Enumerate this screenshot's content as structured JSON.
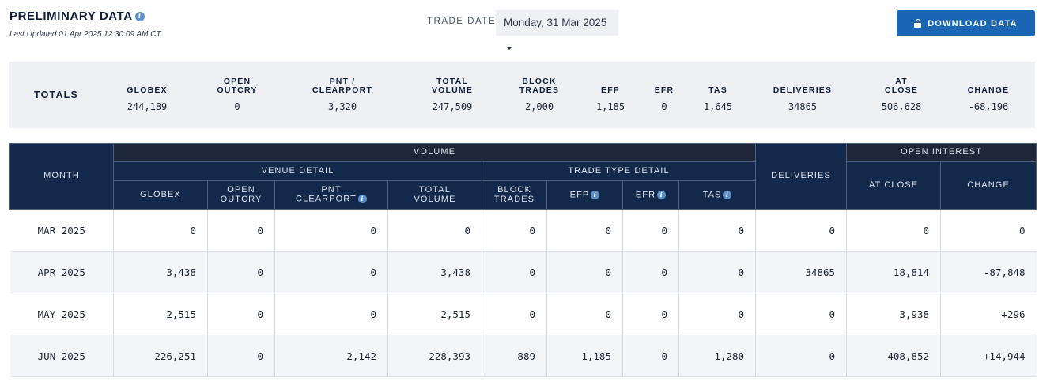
{
  "header": {
    "title": "PRELIMINARY DATA",
    "last_updated": "Last Updated  01 Apr 2025 12:30:09 AM CT",
    "trade_date_label": "TRADE DATE",
    "trade_date_value": "Monday, 31 Mar 2025",
    "download_label": "DOWNLOAD DATA"
  },
  "totals": {
    "label": "TOTALS",
    "columns": [
      {
        "label": "GLOBEX",
        "value": "244,189"
      },
      {
        "label": "OPEN\nOUTCRY",
        "value": "0"
      },
      {
        "label": "PNT /\nCLEARPORT",
        "value": "3,320"
      },
      {
        "label": "TOTAL\nVOLUME",
        "value": "247,509"
      },
      {
        "label": "BLOCK\nTRADES",
        "value": "2,000"
      },
      {
        "label": "EFP",
        "value": "1,185"
      },
      {
        "label": "EFR",
        "value": "0"
      },
      {
        "label": "TAS",
        "value": "1,645"
      },
      {
        "label": "DELIVERIES",
        "value": "34865"
      },
      {
        "label": "AT\nCLOSE",
        "value": "506,628"
      },
      {
        "label": "CHANGE",
        "value": "-68,196"
      }
    ]
  },
  "table": {
    "month_header": "MONTH",
    "volume_header": "VOLUME",
    "venue_detail_header": "VENUE DETAIL",
    "trade_type_header": "TRADE TYPE DETAIL",
    "deliveries_header": "DELIVERIES",
    "open_interest_header": "OPEN INTEREST",
    "columns": {
      "globex": "GLOBEX",
      "open_outcry": "OPEN\nOUTCRY",
      "pnt_clearport": "PNT\nCLEARPORT",
      "total_volume": "TOTAL\nVOLUME",
      "block_trades": "BLOCK\nTRADES",
      "efp": "EFP",
      "efr": "EFR",
      "tas": "TAS",
      "at_close": "AT CLOSE",
      "change": "CHANGE"
    },
    "rows": [
      {
        "month": "MAR 2025",
        "globex": "0",
        "open_outcry": "0",
        "pnt": "0",
        "total_volume": "0",
        "block": "0",
        "efp": "0",
        "efr": "0",
        "tas": "0",
        "deliveries": "0",
        "at_close": "0",
        "change": "0",
        "change_dir": "flat"
      },
      {
        "month": "APR 2025",
        "globex": "3,438",
        "open_outcry": "0",
        "pnt": "0",
        "total_volume": "3,438",
        "block": "0",
        "efp": "0",
        "efr": "0",
        "tas": "0",
        "deliveries": "34865",
        "at_close": "18,814",
        "change": "-87,848",
        "change_dir": "neg"
      },
      {
        "month": "MAY 2025",
        "globex": "2,515",
        "open_outcry": "0",
        "pnt": "0",
        "total_volume": "2,515",
        "block": "0",
        "efp": "0",
        "efr": "0",
        "tas": "0",
        "deliveries": "0",
        "at_close": "3,938",
        "change": "+296",
        "change_dir": "pos"
      },
      {
        "month": "JUN 2025",
        "globex": "226,251",
        "open_outcry": "0",
        "pnt": "2,142",
        "total_volume": "228,393",
        "block": "889",
        "efp": "1,185",
        "efr": "0",
        "tas": "1,280",
        "deliveries": "0",
        "at_close": "408,852",
        "change": "+14,944",
        "change_dir": "pos"
      }
    ]
  },
  "icons": {
    "info": "info-icon",
    "lock": "lock-icon",
    "caret": "caret-down-icon"
  },
  "colors": {
    "header_navy": "#13294b",
    "group_dark": "#1d2738",
    "download_blue": "#1a66b5",
    "negative": "#d61f1f",
    "positive": "#2e8b2e"
  }
}
